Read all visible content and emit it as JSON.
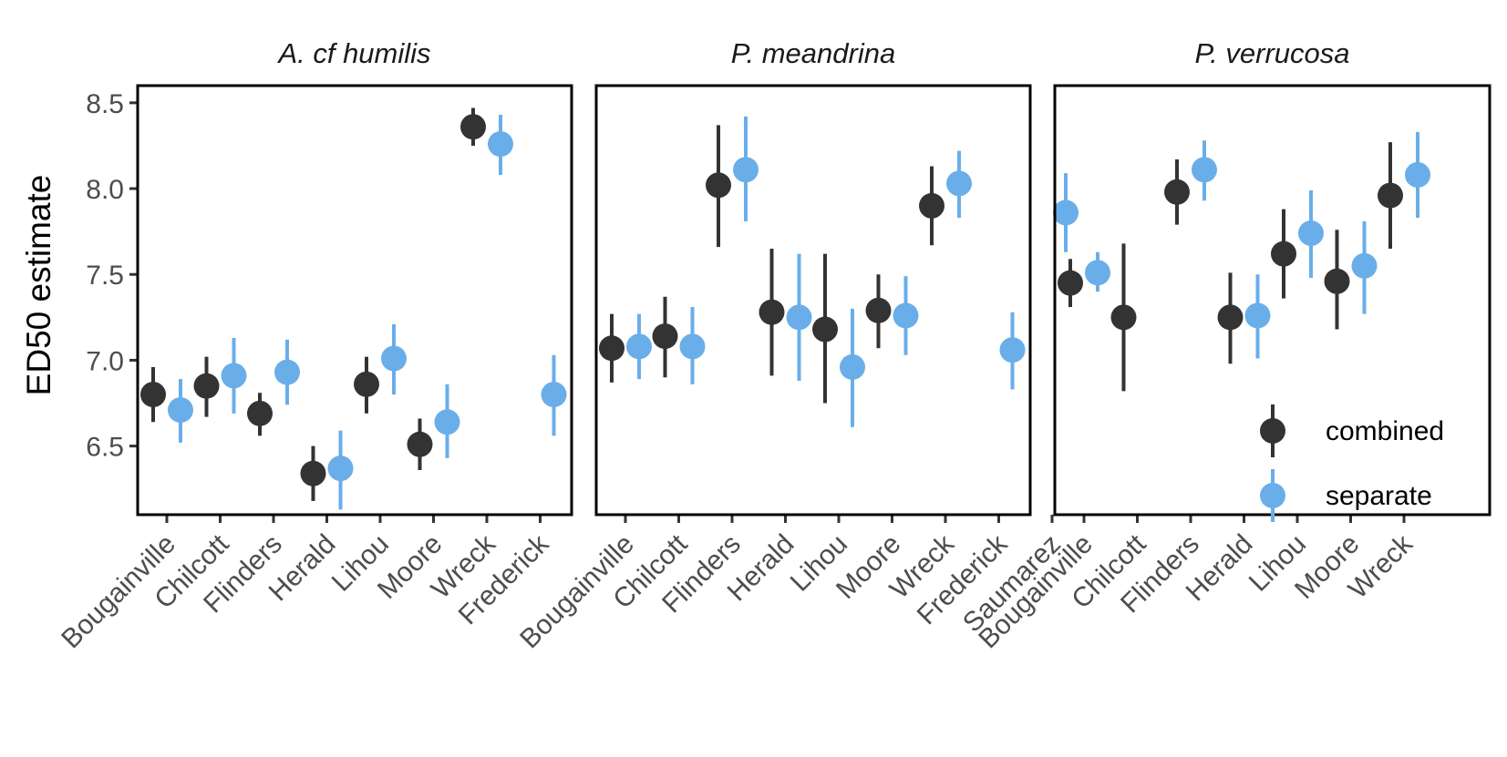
{
  "chart_data": {
    "type": "scatter",
    "ylabel": "ED50 estimate",
    "ylim": [
      6.1,
      8.6
    ],
    "yticks": [
      6.5,
      7.0,
      7.5,
      8.0,
      8.5
    ],
    "ytick_labels": [
      "6.5",
      "7.0",
      "7.5",
      "8.0",
      "8.5"
    ],
    "grid": false,
    "legend_position": "bottom-right, inside third panel",
    "colors": {
      "combined": "#333333",
      "separate": "#6aaee9"
    },
    "legend": [
      {
        "key": "combined",
        "label": "combined"
      },
      {
        "key": "separate",
        "label": "separate"
      }
    ],
    "panels": [
      {
        "title": "A. cf humilis",
        "categories": [
          "Bougainville",
          "Chilcott",
          "Flinders",
          "Herald",
          "Lihou",
          "Moore",
          "Wreck",
          "Frederick"
        ],
        "series": [
          {
            "key": "combined",
            "name": "combined",
            "points": [
              {
                "x": "Bougainville",
                "y": 6.8,
                "lo": 6.64,
                "hi": 6.96
              },
              {
                "x": "Chilcott",
                "y": 6.85,
                "lo": 6.67,
                "hi": 7.02
              },
              {
                "x": "Flinders",
                "y": 6.69,
                "lo": 6.56,
                "hi": 6.81
              },
              {
                "x": "Herald",
                "y": 6.34,
                "lo": 6.18,
                "hi": 6.5
              },
              {
                "x": "Lihou",
                "y": 6.86,
                "lo": 6.69,
                "hi": 7.02
              },
              {
                "x": "Moore",
                "y": 6.51,
                "lo": 6.36,
                "hi": 6.66
              },
              {
                "x": "Wreck",
                "y": 8.36,
                "lo": 8.25,
                "hi": 8.47
              }
            ]
          },
          {
            "key": "separate",
            "name": "separate",
            "points": [
              {
                "x": "Bougainville",
                "y": 6.71,
                "lo": 6.52,
                "hi": 6.89
              },
              {
                "x": "Chilcott",
                "y": 6.91,
                "lo": 6.69,
                "hi": 7.13
              },
              {
                "x": "Flinders",
                "y": 6.93,
                "lo": 6.74,
                "hi": 7.12
              },
              {
                "x": "Herald",
                "y": 6.37,
                "lo": 6.13,
                "hi": 6.59
              },
              {
                "x": "Lihou",
                "y": 7.01,
                "lo": 6.8,
                "hi": 7.21
              },
              {
                "x": "Moore",
                "y": 6.64,
                "lo": 6.43,
                "hi": 6.86
              },
              {
                "x": "Wreck",
                "y": 8.26,
                "lo": 8.08,
                "hi": 8.43
              },
              {
                "x": "Frederick",
                "y": 6.8,
                "lo": 6.56,
                "hi": 7.03
              }
            ]
          }
        ]
      },
      {
        "title": "P. meandrina",
        "categories": [
          "Bougainville",
          "Chilcott",
          "Flinders",
          "Herald",
          "Lihou",
          "Moore",
          "Wreck",
          "Frederick",
          "Saumarez"
        ],
        "series": [
          {
            "key": "combined",
            "name": "combined",
            "points": [
              {
                "x": "Bougainville",
                "y": 7.07,
                "lo": 6.87,
                "hi": 7.27
              },
              {
                "x": "Chilcott",
                "y": 7.14,
                "lo": 6.9,
                "hi": 7.37
              },
              {
                "x": "Flinders",
                "y": 8.02,
                "lo": 7.66,
                "hi": 8.37
              },
              {
                "x": "Herald",
                "y": 7.28,
                "lo": 6.91,
                "hi": 7.65
              },
              {
                "x": "Lihou",
                "y": 7.18,
                "lo": 6.75,
                "hi": 7.62
              },
              {
                "x": "Moore",
                "y": 7.29,
                "lo": 7.07,
                "hi": 7.5
              },
              {
                "x": "Wreck",
                "y": 7.9,
                "lo": 7.67,
                "hi": 8.13
              }
            ]
          },
          {
            "key": "separate",
            "name": "separate",
            "points": [
              {
                "x": "Bougainville",
                "y": 7.08,
                "lo": 6.89,
                "hi": 7.27
              },
              {
                "x": "Chilcott",
                "y": 7.08,
                "lo": 6.86,
                "hi": 7.31
              },
              {
                "x": "Flinders",
                "y": 8.11,
                "lo": 7.81,
                "hi": 8.42
              },
              {
                "x": "Herald",
                "y": 7.25,
                "lo": 6.88,
                "hi": 7.62
              },
              {
                "x": "Lihou",
                "y": 6.96,
                "lo": 6.61,
                "hi": 7.3
              },
              {
                "x": "Moore",
                "y": 7.26,
                "lo": 7.03,
                "hi": 7.49
              },
              {
                "x": "Wreck",
                "y": 8.03,
                "lo": 7.83,
                "hi": 8.22
              },
              {
                "x": "Frederick",
                "y": 7.06,
                "lo": 6.83,
                "hi": 7.28
              },
              {
                "x": "Saumarez",
                "y": 7.86,
                "lo": 7.63,
                "hi": 8.09
              }
            ]
          }
        ]
      },
      {
        "title": "P. verrucosa",
        "categories": [
          "Bougainville",
          "Chilcott",
          "Flinders",
          "Herald",
          "Lihou",
          "Moore",
          "Wreck"
        ],
        "series": [
          {
            "key": "combined",
            "name": "combined",
            "points": [
              {
                "x": "Bougainville",
                "y": 7.45,
                "lo": 7.31,
                "hi": 7.59
              },
              {
                "x": "Chilcott",
                "y": 7.25,
                "lo": 6.82,
                "hi": 7.68
              },
              {
                "x": "Flinders",
                "y": 7.98,
                "lo": 7.79,
                "hi": 8.17
              },
              {
                "x": "Herald",
                "y": 7.25,
                "lo": 6.98,
                "hi": 7.51
              },
              {
                "x": "Lihou",
                "y": 7.62,
                "lo": 7.36,
                "hi": 7.88
              },
              {
                "x": "Moore",
                "y": 7.46,
                "lo": 7.18,
                "hi": 7.76
              },
              {
                "x": "Wreck",
                "y": 7.96,
                "lo": 7.65,
                "hi": 8.27
              }
            ]
          },
          {
            "key": "separate",
            "name": "separate",
            "points": [
              {
                "x": "Bougainville",
                "y": 7.51,
                "lo": 7.4,
                "hi": 7.63
              },
              {
                "x": "Flinders",
                "y": 8.11,
                "lo": 7.93,
                "hi": 8.28
              },
              {
                "x": "Herald",
                "y": 7.26,
                "lo": 7.01,
                "hi": 7.5
              },
              {
                "x": "Lihou",
                "y": 7.74,
                "lo": 7.48,
                "hi": 7.99
              },
              {
                "x": "Moore",
                "y": 7.55,
                "lo": 7.27,
                "hi": 7.81
              },
              {
                "x": "Wreck",
                "y": 8.08,
                "lo": 7.83,
                "hi": 8.33
              }
            ]
          }
        ]
      }
    ]
  }
}
